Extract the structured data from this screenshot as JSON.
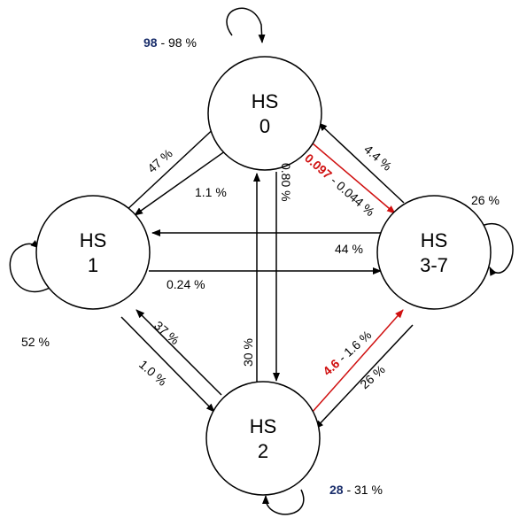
{
  "nodes": [
    {
      "name": "HS",
      "id": "0"
    },
    {
      "name": "HS",
      "id": "1"
    },
    {
      "name": "HS",
      "id": "3-7"
    },
    {
      "name": "HS",
      "id": "2"
    }
  ],
  "edges": [
    {
      "highlight": "98",
      "label": "- 98 %"
    },
    {
      "label": "47 %"
    },
    {
      "label": "1.1 %"
    },
    {
      "label": "0.80 %"
    },
    {
      "highlight": "0.097",
      "label": "- 0.044 %"
    },
    {
      "label": "4.4 %"
    },
    {
      "label": "26 %"
    },
    {
      "label": "44 %"
    },
    {
      "label": "0.24 %"
    },
    {
      "label": "52 %"
    },
    {
      "label": "37 %"
    },
    {
      "label": "1.0 %"
    },
    {
      "label": "30 %"
    },
    {
      "highlight": "4.6",
      "label": "- 1.6 %"
    },
    {
      "label": "26 %"
    },
    {
      "highlight": "28",
      "label": "- 31 %"
    }
  ]
}
